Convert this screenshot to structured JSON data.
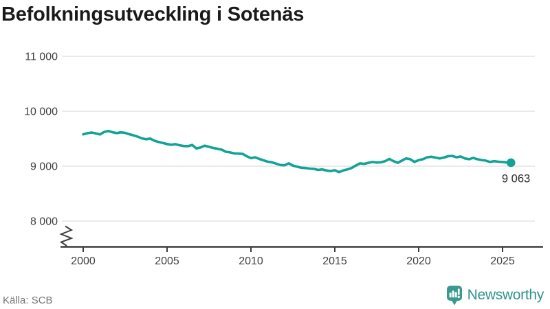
{
  "title": "Befolkningsutveckling i Sotenäs",
  "source": "Källa: SCB",
  "branding": {
    "name": "Newsworthy",
    "logo_icon": "bar-chart-speech-bubble-icon"
  },
  "colors": {
    "line": "#12a296",
    "grid": "#e4e4e4",
    "axis": "#3d3d3d",
    "tick_text": "#404040",
    "annotation_text": "#2b2b2b",
    "brand": "#2f948c"
  },
  "chart_data": {
    "type": "line",
    "title": "Befolkningsutveckling i Sotenäs",
    "xlabel": "",
    "ylabel": "",
    "grid": "horizontal",
    "legend": "none",
    "axis_break_bottom_left": true,
    "xlim": [
      1998.7,
      2027.4
    ],
    "ylim_displayed": [
      8000,
      11000
    ],
    "x_ticks": {
      "values": [
        2000,
        2005,
        2010,
        2015,
        2020,
        2025
      ],
      "labels": [
        "2000",
        "2005",
        "2010",
        "2015",
        "2020",
        "2025"
      ]
    },
    "y_ticks": {
      "values": [
        8000,
        9000,
        10000,
        11000
      ],
      "labels": [
        "8 000",
        "9 000",
        "10 000",
        "11 000"
      ]
    },
    "last_point": {
      "x": 2025.5,
      "value": 9063,
      "label": "9 063"
    },
    "x": [
      2000,
      2000.25,
      2000.5,
      2000.75,
      2001,
      2001.25,
      2001.5,
      2001.75,
      2002,
      2002.25,
      2002.5,
      2002.75,
      2003,
      2003.25,
      2003.5,
      2003.75,
      2004,
      2004.25,
      2004.5,
      2004.75,
      2005,
      2005.25,
      2005.5,
      2005.75,
      2006,
      2006.25,
      2006.5,
      2006.75,
      2007,
      2007.25,
      2007.5,
      2007.75,
      2008,
      2008.25,
      2008.5,
      2008.75,
      2009,
      2009.25,
      2009.5,
      2009.75,
      2010,
      2010.25,
      2010.5,
      2010.75,
      2011,
      2011.25,
      2011.5,
      2011.75,
      2012,
      2012.25,
      2012.5,
      2012.75,
      2013,
      2013.25,
      2013.5,
      2013.75,
      2014,
      2014.25,
      2014.5,
      2014.75,
      2015,
      2015.25,
      2015.5,
      2015.75,
      2016,
      2016.25,
      2016.5,
      2016.75,
      2017,
      2017.25,
      2017.5,
      2017.75,
      2018,
      2018.25,
      2018.5,
      2018.75,
      2019,
      2019.25,
      2019.5,
      2019.75,
      2020,
      2020.25,
      2020.5,
      2020.75,
      2021,
      2021.25,
      2021.5,
      2021.75,
      2022,
      2022.25,
      2022.5,
      2022.75,
      2023,
      2023.25,
      2023.5,
      2023.75,
      2024,
      2024.25,
      2024.5,
      2024.75,
      2025,
      2025.25,
      2025.5
    ],
    "series": [
      {
        "name": "Befolkning",
        "values": [
          9580,
          9600,
          9612,
          9596,
          9578,
          9622,
          9641,
          9617,
          9602,
          9616,
          9606,
          9581,
          9561,
          9538,
          9506,
          9490,
          9502,
          9462,
          9440,
          9421,
          9402,
          9390,
          9401,
          9380,
          9366,
          9364,
          9386,
          9322,
          9341,
          9372,
          9352,
          9331,
          9316,
          9301,
          9262,
          9251,
          9232,
          9229,
          9224,
          9181,
          9146,
          9161,
          9131,
          9106,
          9081,
          9071,
          9046,
          9021,
          9016,
          9051,
          9011,
          8991,
          8971,
          8966,
          8956,
          8951,
          8931,
          8941,
          8921,
          8911,
          8926,
          8891,
          8921,
          8941,
          8966,
          9011,
          9051,
          9041,
          9061,
          9076,
          9066,
          9071,
          9091,
          9131,
          9091,
          9061,
          9101,
          9141,
          9126,
          9076,
          9111,
          9126,
          9161,
          9171,
          9156,
          9141,
          9156,
          9181,
          9186,
          9161,
          9176,
          9141,
          9126,
          9151,
          9126,
          9111,
          9101,
          9076,
          9091,
          9081,
          9076,
          9068,
          9063
        ]
      }
    ]
  }
}
